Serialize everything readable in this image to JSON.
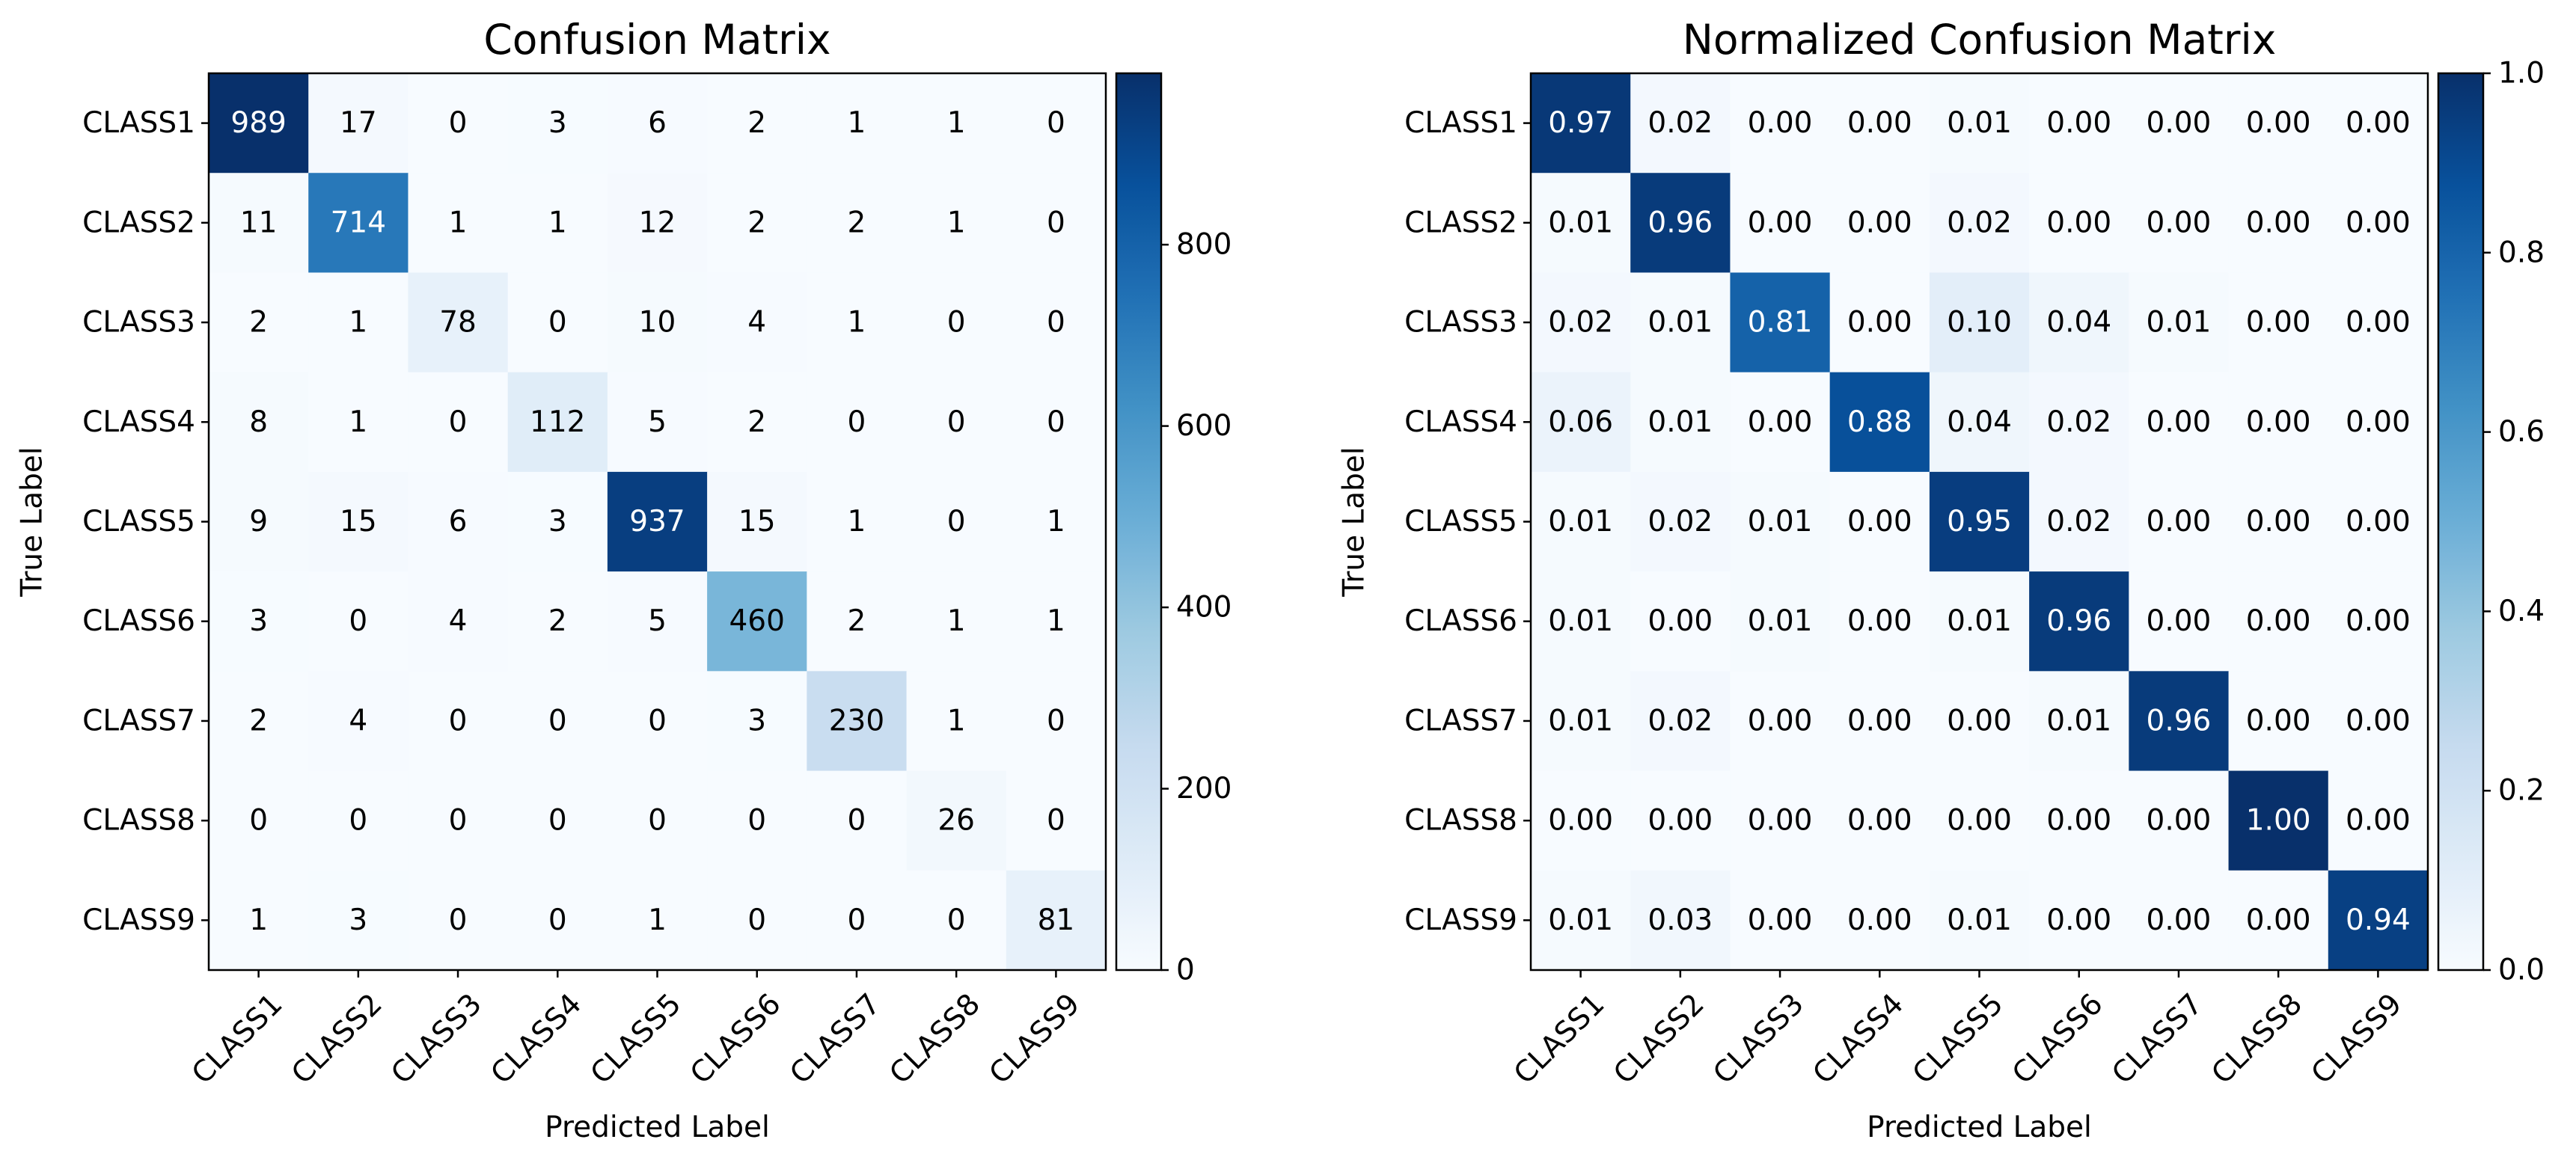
{
  "chart_data": [
    {
      "type": "heatmap",
      "title": "Confusion Matrix",
      "xlabel": "Predicted Label",
      "ylabel": "True Label",
      "x_categories": [
        "CLASS1",
        "CLASS2",
        "CLASS3",
        "CLASS4",
        "CLASS5",
        "CLASS6",
        "CLASS7",
        "CLASS8",
        "CLASS9"
      ],
      "y_categories": [
        "CLASS1",
        "CLASS2",
        "CLASS3",
        "CLASS4",
        "CLASS5",
        "CLASS6",
        "CLASS7",
        "CLASS8",
        "CLASS9"
      ],
      "values": [
        [
          989,
          17,
          0,
          3,
          6,
          2,
          1,
          1,
          0
        ],
        [
          11,
          714,
          1,
          1,
          12,
          2,
          2,
          1,
          0
        ],
        [
          2,
          1,
          78,
          0,
          10,
          4,
          1,
          0,
          0
        ],
        [
          8,
          1,
          0,
          112,
          5,
          2,
          0,
          0,
          0
        ],
        [
          9,
          15,
          6,
          3,
          937,
          15,
          1,
          0,
          1
        ],
        [
          3,
          0,
          4,
          2,
          5,
          460,
          2,
          1,
          1
        ],
        [
          2,
          4,
          0,
          0,
          0,
          3,
          230,
          1,
          0
        ],
        [
          0,
          0,
          0,
          0,
          0,
          0,
          0,
          26,
          0
        ],
        [
          1,
          3,
          0,
          0,
          1,
          0,
          0,
          0,
          81
        ]
      ],
      "value_format": "integer",
      "colormap": "Blues",
      "color_range": [
        0,
        989
      ],
      "colorbar_ticks": [
        0,
        200,
        400,
        600,
        800
      ],
      "colorbar_tick_labels": [
        "0",
        "200",
        "400",
        "600",
        "800"
      ]
    },
    {
      "type": "heatmap",
      "title": "Normalized Confusion Matrix",
      "xlabel": "Predicted Label",
      "ylabel": "True Label",
      "x_categories": [
        "CLASS1",
        "CLASS2",
        "CLASS3",
        "CLASS4",
        "CLASS5",
        "CLASS6",
        "CLASS7",
        "CLASS8",
        "CLASS9"
      ],
      "y_categories": [
        "CLASS1",
        "CLASS2",
        "CLASS3",
        "CLASS4",
        "CLASS5",
        "CLASS6",
        "CLASS7",
        "CLASS8",
        "CLASS9"
      ],
      "values": [
        [
          0.97,
          0.02,
          0.0,
          0.0,
          0.01,
          0.0,
          0.0,
          0.0,
          0.0
        ],
        [
          0.01,
          0.96,
          0.0,
          0.0,
          0.02,
          0.0,
          0.0,
          0.0,
          0.0
        ],
        [
          0.02,
          0.01,
          0.81,
          0.0,
          0.1,
          0.04,
          0.01,
          0.0,
          0.0
        ],
        [
          0.06,
          0.01,
          0.0,
          0.88,
          0.04,
          0.02,
          0.0,
          0.0,
          0.0
        ],
        [
          0.01,
          0.02,
          0.01,
          0.0,
          0.95,
          0.02,
          0.0,
          0.0,
          0.0
        ],
        [
          0.01,
          0.0,
          0.01,
          0.0,
          0.01,
          0.96,
          0.0,
          0.0,
          0.0
        ],
        [
          0.01,
          0.02,
          0.0,
          0.0,
          0.0,
          0.01,
          0.96,
          0.0,
          0.0
        ],
        [
          0.0,
          0.0,
          0.0,
          0.0,
          0.0,
          0.0,
          0.0,
          1.0,
          0.0
        ],
        [
          0.01,
          0.03,
          0.0,
          0.0,
          0.01,
          0.0,
          0.0,
          0.0,
          0.94
        ]
      ],
      "value_format": "two-decimals",
      "colormap": "Blues",
      "color_range": [
        0,
        1
      ],
      "colorbar_ticks": [
        0,
        0.2,
        0.4,
        0.6,
        0.8,
        1.0
      ],
      "colorbar_tick_labels": [
        "0.0",
        "0.2",
        "0.4",
        "0.6",
        "0.8",
        "1.0"
      ]
    }
  ],
  "colors": {
    "cmap_stops": [
      "#f7fbff",
      "#deebf7",
      "#c6dbef",
      "#9ecae1",
      "#6baed6",
      "#4292c6",
      "#2171b5",
      "#08519c",
      "#08306b"
    ],
    "text_dark": "#000000",
    "text_light": "#ffffff"
  }
}
